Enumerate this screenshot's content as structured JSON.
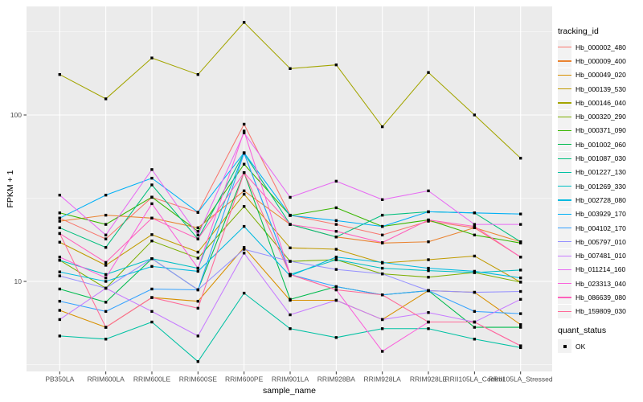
{
  "chart_data": {
    "type": "line",
    "xlabel": "sample_name",
    "ylabel": "FPKM + 1",
    "y_scale": "log10",
    "y_ticks": [
      {
        "value": 100,
        "label": "100"
      },
      {
        "value": 10,
        "label": "10"
      }
    ],
    "y_minor_ticks": [
      316.23,
      31.62,
      3.162
    ],
    "ylim_approx": [
      2.6,
      460
    ],
    "grid": true,
    "panel_bg": "#EBEBEB",
    "grid_color": "#FFFFFF",
    "point_color": "#000000",
    "categories": [
      "PB350LA",
      "RRIM600LA",
      "RRIM600LE",
      "RRIM600SE",
      "RRIM600PE",
      "RRIM901LA",
      "RRIM928BA",
      "RRIM928LA",
      "RRIM928LE",
      "RRII105LA_Control",
      "RRII105LA_Stressed"
    ],
    "series": [
      {
        "name": "Hb_000002_480",
        "color": "#F8766D",
        "values": [
          24,
          18,
          32,
          26,
          88,
          25,
          22,
          19,
          23,
          21,
          14
        ]
      },
      {
        "name": "Hb_000009_400",
        "color": "#EA8331",
        "values": [
          23,
          25,
          24,
          21,
          35,
          22,
          18.5,
          17,
          17.3,
          21,
          17.3
        ]
      },
      {
        "name": "Hb_000049_020",
        "color": "#D89000",
        "values": [
          6.7,
          5.3,
          8,
          7.6,
          16,
          7.7,
          7.7,
          5.9,
          8.8,
          8.6,
          5.5
        ]
      },
      {
        "name": "Hb_000139_530",
        "color": "#C09B00",
        "values": [
          17.2,
          12.5,
          19.1,
          15,
          33.4,
          15.9,
          15.6,
          12.9,
          13.5,
          14.2,
          9.9
        ]
      },
      {
        "name": "Hb_000146_040",
        "color": "#A3A500",
        "values": [
          175,
          125,
          220,
          175,
          360,
          190,
          200,
          85,
          180,
          100,
          55
        ]
      },
      {
        "name": "Hb_000320_290",
        "color": "#7CAE00",
        "values": [
          13.4,
          9.1,
          17.5,
          13.8,
          28.2,
          13.2,
          13.5,
          11.1,
          10.6,
          11.3,
          9.9
        ]
      },
      {
        "name": "Hb_000371_090",
        "color": "#39B600",
        "values": [
          25.8,
          22,
          32.1,
          20,
          50.6,
          24.9,
          27.7,
          21.4,
          23.4,
          19,
          17
        ]
      },
      {
        "name": "Hb_001002_060",
        "color": "#00BB4E",
        "values": [
          9,
          7.5,
          13.7,
          8.9,
          45,
          7.8,
          9.3,
          8.3,
          8.8,
          5.3,
          5.3
        ]
      },
      {
        "name": "Hb_001087_030",
        "color": "#00BF7D",
        "values": [
          21,
          16,
          38,
          18,
          59,
          22,
          18.5,
          25,
          26.2,
          25.8,
          17.3
        ]
      },
      {
        "name": "Hb_001227_130",
        "color": "#00C1A3",
        "values": [
          4.7,
          4.5,
          5.7,
          3.3,
          8.5,
          5.2,
          4.6,
          5.2,
          5.2,
          4.5,
          4
        ]
      },
      {
        "name": "Hb_001269_330",
        "color": "#00BFC4",
        "values": [
          13.4,
          11,
          13.7,
          12,
          59,
          11,
          13.5,
          12,
          11.6,
          11.3,
          11.7
        ]
      },
      {
        "name": "Hb_002728_080",
        "color": "#00BAE0",
        "values": [
          11.4,
          10,
          12.3,
          11.5,
          21.4,
          10.8,
          14,
          13,
          12,
          11.5,
          10.5
        ]
      },
      {
        "name": "Hb_003929_170",
        "color": "#00B0F6",
        "values": [
          24,
          33,
          41.7,
          26,
          59.3,
          24.9,
          23.2,
          21.4,
          26.2,
          25.8,
          25.4
        ]
      },
      {
        "name": "Hb_004102_170",
        "color": "#35A2FF",
        "values": [
          7.6,
          6.6,
          9,
          8.9,
          59,
          11,
          9.3,
          8.3,
          8.8,
          6.6,
          6.4
        ]
      },
      {
        "name": "Hb_005797_010",
        "color": "#9590FF",
        "values": [
          10.8,
          9.1,
          13.7,
          8.9,
          15.6,
          13.2,
          11.8,
          11.1,
          8.8,
          8.6,
          8.7
        ]
      },
      {
        "name": "Hb_007481_010",
        "color": "#C77CFF",
        "values": [
          5.9,
          9.1,
          6.6,
          4.7,
          14.8,
          6.3,
          7.7,
          5.9,
          6.5,
          5.7,
          7.8
        ]
      },
      {
        "name": "Hb_011214_160",
        "color": "#E76BF3",
        "values": [
          33,
          19,
          47,
          19,
          78,
          32,
          40,
          31,
          35,
          22,
          22
        ]
      },
      {
        "name": "Hb_023313_040",
        "color": "#FA62DB",
        "values": [
          14,
          10.5,
          29.3,
          12,
          80,
          11,
          8.9,
          3.8,
          5.7,
          5.7,
          4.1
        ]
      },
      {
        "name": "Hb_086639_080",
        "color": "#FF62BC",
        "values": [
          19.4,
          13,
          24,
          18,
          45,
          22,
          20,
          17.1,
          23.4,
          21.4,
          14
        ]
      },
      {
        "name": "Hb_159809_030",
        "color": "#FF6A98",
        "values": [
          19.4,
          5.3,
          8,
          6.9,
          45,
          11,
          8.9,
          8.3,
          5.7,
          5.7,
          4.1
        ]
      }
    ],
    "legend": {
      "tracking_title": "tracking_id",
      "quant_title": "quant_status",
      "quant_items": [
        {
          "label": "OK",
          "marker": "black-square"
        }
      ],
      "position": "right"
    }
  }
}
